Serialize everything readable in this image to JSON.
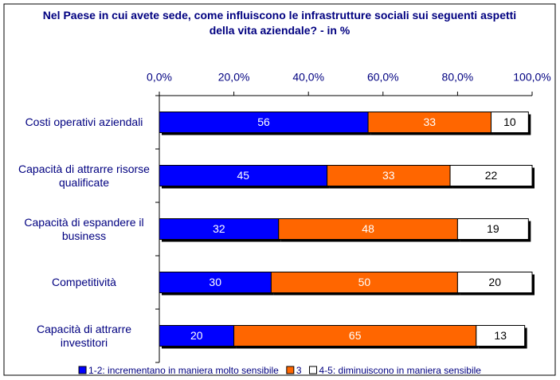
{
  "chart_data": {
    "type": "stacked-bar-horizontal",
    "title": "Nel Paese in cui avete sede, come influiscono le infrastrutture sociali sui seguenti aspetti della vita aziendale? - in %",
    "categories": [
      "Costi operativi aziendali",
      "Capacità di attrarre risorse qualificate",
      "Capacità di espandere il business",
      "Competitività",
      "Capacità di attrarre investitori"
    ],
    "series": [
      {
        "name": "1-2: incrementano in maniera molto sensibile",
        "color": "#0000ff",
        "values": [
          56,
          45,
          32,
          30,
          20
        ]
      },
      {
        "name": "3",
        "color": "#ff6600",
        "values": [
          33,
          33,
          48,
          50,
          65
        ]
      },
      {
        "name": "4-5: diminuiscono in maniera sensibile",
        "color": "#ffffff",
        "values": [
          10,
          22,
          19,
          20,
          13
        ]
      }
    ],
    "xlim": [
      0,
      100
    ],
    "xticks": [
      {
        "value": 0,
        "label": "0,0%"
      },
      {
        "value": 20,
        "label": "20,0%"
      },
      {
        "value": 40,
        "label": "40,0%"
      },
      {
        "value": 60,
        "label": "60,0%"
      },
      {
        "value": 80,
        "label": "80,0%"
      },
      {
        "value": 100,
        "label": "100,0%"
      }
    ],
    "legend": "bottom"
  }
}
